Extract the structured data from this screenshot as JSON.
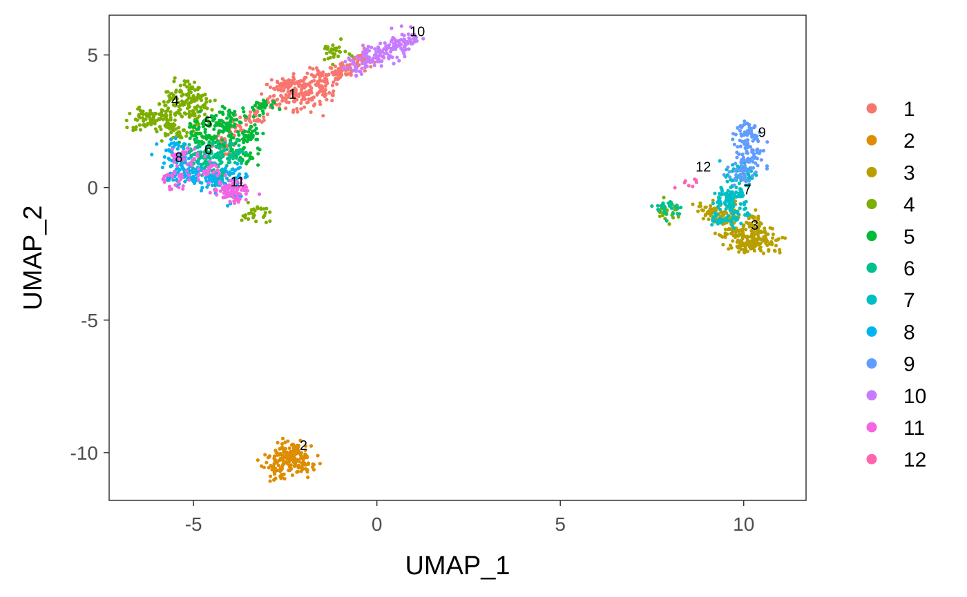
{
  "chart_data": {
    "type": "scatter",
    "title": "",
    "xlabel": "UMAP_1",
    "ylabel": "UMAP_2",
    "xlim": [
      -7.3,
      11.7
    ],
    "ylim": [
      -11.8,
      6.5
    ],
    "xticks": [
      -5,
      0,
      5,
      10
    ],
    "yticks": [
      5,
      0,
      -5,
      -10
    ],
    "xtick_labels": [
      "-5",
      "0",
      "5",
      "10"
    ],
    "ytick_labels": [
      "5",
      "0",
      "-5",
      "-10"
    ],
    "grid": false,
    "legend_position": "right",
    "point_spread": 0.55,
    "clusters": [
      {
        "name": "1",
        "color": "#F8766D",
        "label": "1",
        "label_x": -2.3,
        "label_y": 3.35,
        "points": [
          [
            -2.2,
            3.9
          ],
          [
            -1.9,
            3.7
          ],
          [
            -2.4,
            3.5
          ],
          [
            -1.6,
            4.1
          ],
          [
            -1.2,
            4.3
          ],
          [
            -0.8,
            4.5
          ],
          [
            -0.5,
            4.8
          ],
          [
            -2.8,
            3.3
          ],
          [
            -3.3,
            2.7
          ],
          [
            -3.9,
            2.2
          ],
          [
            -4.2,
            1.6
          ],
          [
            -1.9,
            3.2
          ],
          [
            -2.6,
            3.9
          ],
          [
            -1.4,
            3.6
          ]
        ]
      },
      {
        "name": "2",
        "color": "#DE8C00",
        "label": "2",
        "label_x": -2.0,
        "label_y": -9.9,
        "points": [
          [
            -2.5,
            -10.2
          ],
          [
            -2.2,
            -10.4
          ],
          [
            -2.6,
            -10.7
          ],
          [
            -2.2,
            -10.0
          ],
          [
            -2.8,
            -10.3
          ],
          [
            -2.4,
            -9.9
          ],
          [
            -2.0,
            -10.5
          ]
        ]
      },
      {
        "name": "3",
        "color": "#B79F00",
        "label": "3",
        "label_x": 10.3,
        "label_y": -1.6,
        "points": [
          [
            9.9,
            -1.8
          ],
          [
            10.3,
            -2.0
          ],
          [
            10.5,
            -1.7
          ],
          [
            10.0,
            -2.2
          ],
          [
            9.7,
            -1.5
          ],
          [
            10.2,
            -1.3
          ],
          [
            9.4,
            -1.2
          ],
          [
            10.7,
            -2.1
          ],
          [
            9.5,
            -0.9
          ],
          [
            9.0,
            -0.9
          ],
          [
            10.1,
            -2.3
          ]
        ]
      },
      {
        "name": "4",
        "color": "#7CAE00",
        "label": "4",
        "label_x": -5.5,
        "label_y": 3.1,
        "points": [
          [
            -5.5,
            3.4
          ],
          [
            -5.2,
            3.1
          ],
          [
            -5.0,
            2.7
          ],
          [
            -5.8,
            2.8
          ],
          [
            -5.2,
            3.7
          ],
          [
            -5.6,
            2.3
          ],
          [
            -6.1,
            2.5
          ],
          [
            -6.4,
            2.6
          ],
          [
            -4.8,
            3.3
          ],
          [
            -5.3,
            2.0
          ],
          [
            -3.3,
            -1.0
          ],
          [
            -1.2,
            5.1
          ],
          [
            7.9,
            -0.9
          ]
        ]
      },
      {
        "name": "5",
        "color": "#00BA38",
        "label": "5",
        "label_x": -4.6,
        "label_y": 2.3,
        "points": [
          [
            -4.6,
            2.4
          ],
          [
            -4.2,
            2.2
          ],
          [
            -4.5,
            1.7
          ],
          [
            -4.0,
            2.7
          ],
          [
            -3.8,
            1.8
          ],
          [
            -3.4,
            2.1
          ],
          [
            -3.6,
            1.2
          ],
          [
            -4.9,
            2.0
          ],
          [
            -3.2,
            3.0
          ]
        ]
      },
      {
        "name": "6",
        "color": "#00C08B",
        "label": "6",
        "label_x": -4.6,
        "label_y": 1.25,
        "points": [
          [
            -4.6,
            1.3
          ],
          [
            -4.2,
            1.0
          ],
          [
            -4.8,
            0.9
          ],
          [
            -4.3,
            0.5
          ],
          [
            -4.0,
            1.4
          ],
          [
            -5.0,
            1.4
          ],
          [
            8.0,
            -0.8
          ]
        ]
      },
      {
        "name": "7",
        "color": "#00BFC4",
        "label": "7",
        "label_x": 10.1,
        "label_y": -0.25,
        "points": [
          [
            9.8,
            -0.2
          ],
          [
            9.9,
            0.3
          ],
          [
            9.6,
            -0.6
          ],
          [
            10.0,
            0.6
          ],
          [
            9.5,
            -0.3
          ],
          [
            9.4,
            -1.2
          ],
          [
            9.8,
            -0.9
          ]
        ]
      },
      {
        "name": "8",
        "color": "#00B4F0",
        "label": "8",
        "label_x": -5.4,
        "label_y": 0.95,
        "points": [
          [
            -5.4,
            1.0
          ],
          [
            -5.1,
            0.6
          ],
          [
            -5.6,
            1.5
          ],
          [
            -4.8,
            0.4
          ],
          [
            -4.4,
            0.2
          ],
          [
            -3.9,
            0.5
          ],
          [
            -5.5,
            0.5
          ],
          [
            -4.1,
            -0.2
          ]
        ]
      },
      {
        "name": "9",
        "color": "#619CFF",
        "label": "9",
        "label_x": 10.5,
        "label_y": 1.9,
        "points": [
          [
            10.1,
            1.8
          ],
          [
            10.2,
            1.3
          ],
          [
            10.0,
            0.9
          ],
          [
            10.1,
            2.2
          ],
          [
            9.9,
            0.5
          ]
        ]
      },
      {
        "name": "10",
        "color": "#C77CFF",
        "label": "10",
        "label_x": 1.1,
        "label_y": 5.7,
        "points": [
          [
            0.6,
            5.4
          ],
          [
            0.3,
            5.1
          ],
          [
            0.8,
            5.6
          ],
          [
            0.0,
            5.0
          ],
          [
            -0.2,
            4.9
          ],
          [
            -0.5,
            4.6
          ]
        ]
      },
      {
        "name": "11",
        "color": "#F564E3",
        "label": "11",
        "label_x": -3.8,
        "label_y": 0.05,
        "points": [
          [
            -3.9,
            0.0
          ],
          [
            -3.7,
            -0.2
          ],
          [
            -4.2,
            -0.1
          ],
          [
            -5.3,
            1.2
          ],
          [
            -4.6,
            0.7
          ],
          [
            -5.6,
            0.3
          ]
        ]
      },
      {
        "name": "12",
        "color": "#FF64B0",
        "label": "12",
        "label_x": 8.9,
        "label_y": 0.6,
        "points": [
          [
            8.4,
            0.2
          ],
          [
            8.5,
            0.15
          ]
        ]
      }
    ],
    "legend": [
      "1",
      "2",
      "3",
      "4",
      "5",
      "6",
      "7",
      "8",
      "9",
      "10",
      "11",
      "12"
    ]
  }
}
